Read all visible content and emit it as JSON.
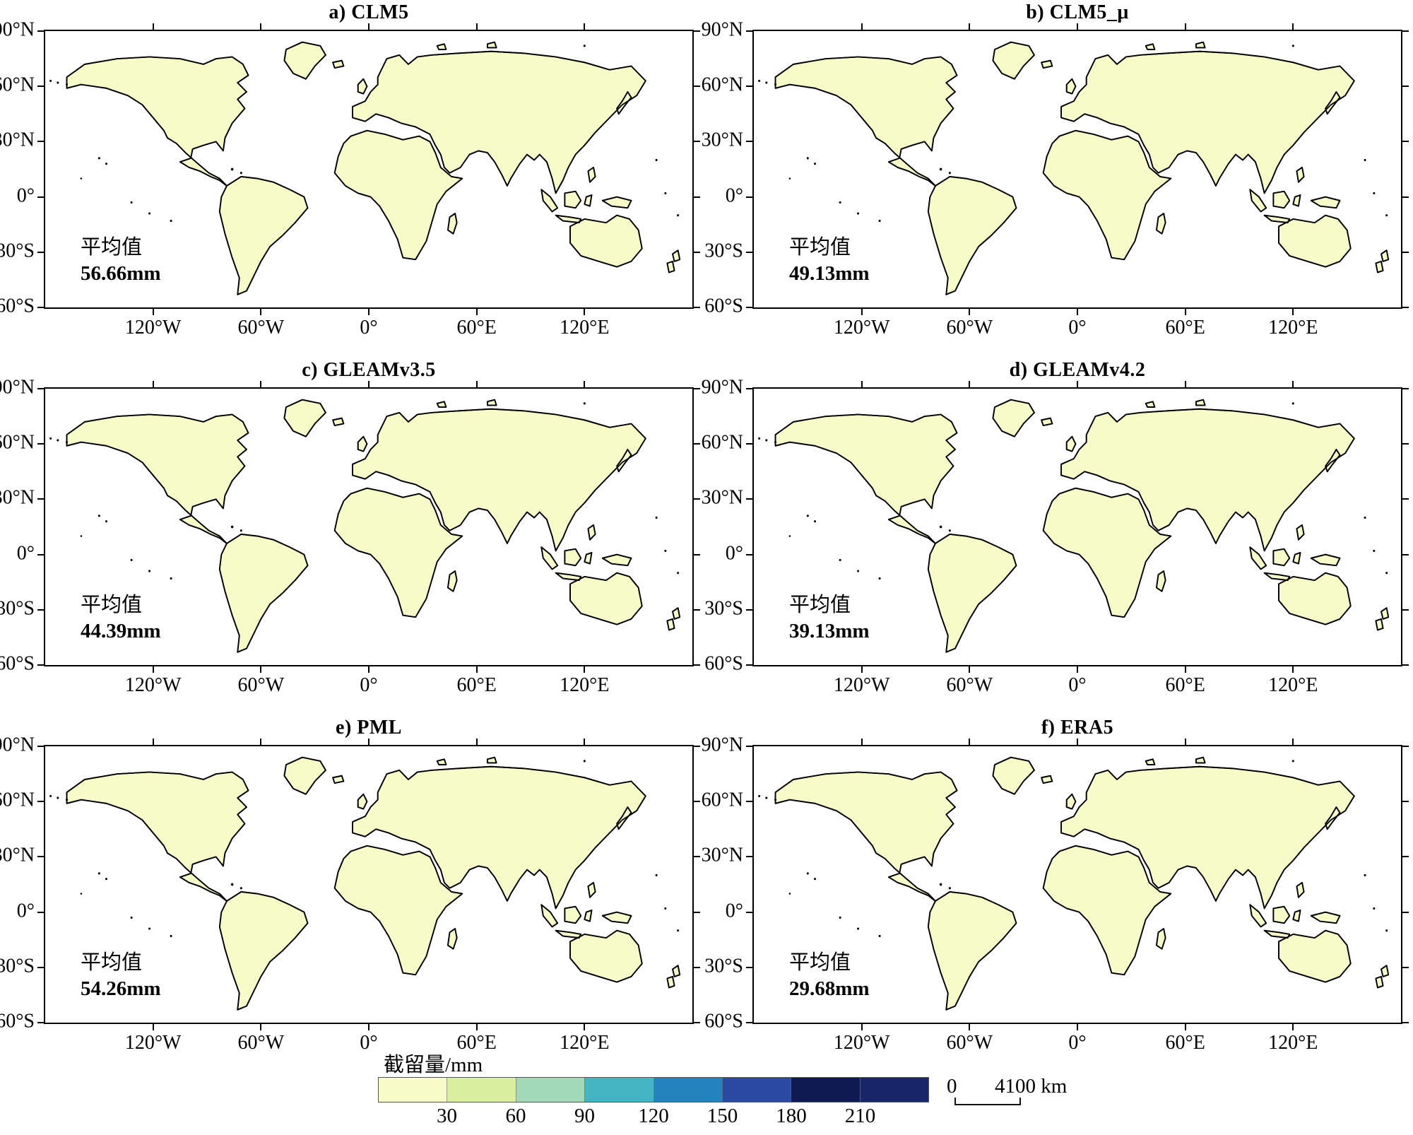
{
  "chart_data": {
    "type": "heatmap",
    "title": "",
    "panels": [
      {
        "label": "a) CLM5",
        "mean_caption": "平均值",
        "mean_value": "56.66mm",
        "mean_mm": 56.66
      },
      {
        "label": "b) CLM5_μ",
        "mean_caption": "平均值",
        "mean_value": "49.13mm",
        "mean_mm": 49.13
      },
      {
        "label": "c) GLEAMv3.5",
        "mean_caption": "平均值",
        "mean_value": "44.39mm",
        "mean_mm": 44.39
      },
      {
        "label": "d) GLEAMv4.2",
        "mean_caption": "平均值",
        "mean_value": "39.13mm",
        "mean_mm": 39.13
      },
      {
        "label": "e) PML",
        "mean_caption": "平均值",
        "mean_value": "54.26mm",
        "mean_mm": 54.26
      },
      {
        "label": "f) ERA5",
        "mean_caption": "平均值",
        "mean_value": "29.68mm",
        "mean_mm": 29.68
      }
    ],
    "x_tick_labels": [
      "120°W",
      "60°W",
      "0°",
      "60°E",
      "120°E"
    ],
    "y_tick_labels": [
      "90°N",
      "60°N",
      "30°N",
      "0°",
      "30°S",
      "60°S"
    ],
    "x_range_deg": [
      -180,
      180
    ],
    "y_range_deg": [
      90,
      -60
    ],
    "colorbar": {
      "label": "截留量/mm",
      "tick_labels": [
        "30",
        "60",
        "90",
        "120",
        "150",
        "180",
        "210"
      ],
      "bin_edges_mm": [
        0,
        30,
        60,
        90,
        120,
        150,
        180,
        210
      ],
      "colors": [
        "#f7fbc8",
        "#d9ef9f",
        "#a2dab8",
        "#45b4c3",
        "#2383bc",
        "#2b4ba3",
        "#0f1a52",
        "#182569"
      ],
      "land_base_color": "#f7fbc8",
      "coast_color": "#000000"
    },
    "scalebar": {
      "start_label": "0",
      "end_label": "4100 km"
    }
  }
}
